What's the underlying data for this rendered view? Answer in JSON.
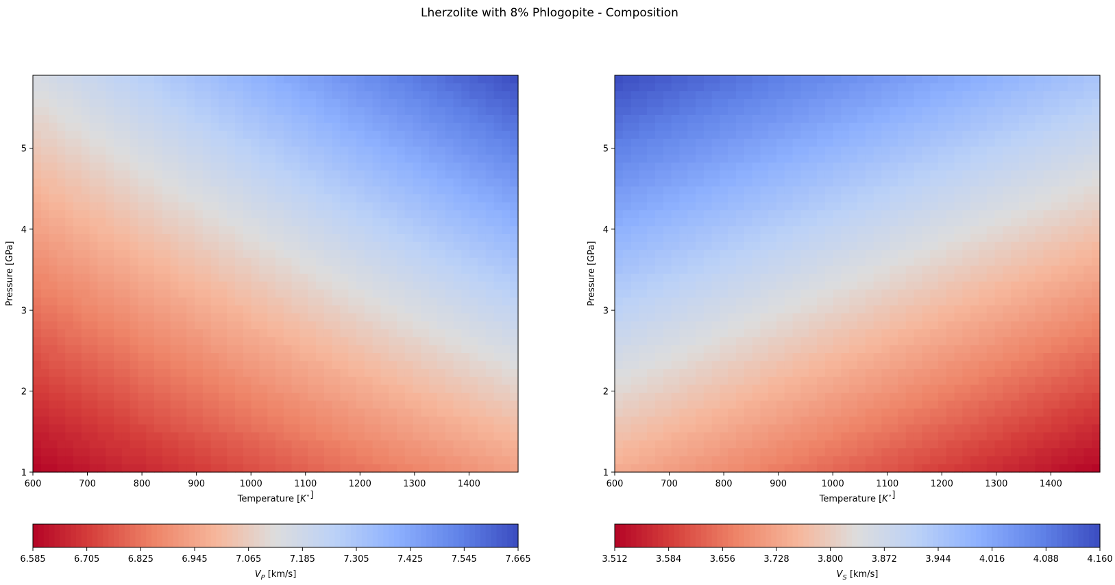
{
  "title": "Lherzolite with 8% Phlogopite - Composition",
  "chart_data": [
    {
      "type": "heatmap",
      "xlabel": "Temperature [K°]",
      "ylabel": "Pressure [GPa]",
      "x_range": [
        600,
        1490
      ],
      "y_range": [
        1,
        5.9
      ],
      "xticks": [
        "600",
        "700",
        "800",
        "900",
        "1000",
        "1100",
        "1200",
        "1300",
        "1400"
      ],
      "yticks": [
        "1",
        "2",
        "3",
        "4",
        "5"
      ],
      "colormap": "coolwarm_r",
      "z_range": [
        6.585,
        7.665
      ],
      "corner_values": {
        "low_T_low_P": 6.585,
        "high_T_low_P": 6.93,
        "low_T_high_P": 7.15,
        "high_T_high_P": 7.665
      },
      "colorbar": {
        "label": "V_P [km/s]",
        "ticks": [
          "6.585",
          "6.705",
          "6.825",
          "6.945",
          "7.065",
          "7.185",
          "7.305",
          "7.425",
          "7.545",
          "7.665"
        ]
      }
    },
    {
      "type": "heatmap",
      "xlabel": "Temperature [K°]",
      "ylabel": "Pressure [GPa]",
      "x_range": [
        600,
        1490
      ],
      "y_range": [
        1,
        5.9
      ],
      "xticks": [
        "600",
        "700",
        "800",
        "900",
        "1000",
        "1100",
        "1200",
        "1300",
        "1400"
      ],
      "yticks": [
        "1",
        "2",
        "3",
        "4",
        "5"
      ],
      "colormap": "coolwarm_r",
      "z_range": [
        3.512,
        4.16
      ],
      "corner_values": {
        "low_T_low_P": 3.74,
        "high_T_low_P": 3.512,
        "low_T_high_P": 4.16,
        "high_T_high_P": 3.95
      },
      "colorbar": {
        "label": "V_S [km/s]",
        "ticks": [
          "3.512",
          "3.584",
          "3.656",
          "3.728",
          "3.800",
          "3.872",
          "3.944",
          "4.016",
          "4.088",
          "4.160"
        ]
      }
    }
  ]
}
